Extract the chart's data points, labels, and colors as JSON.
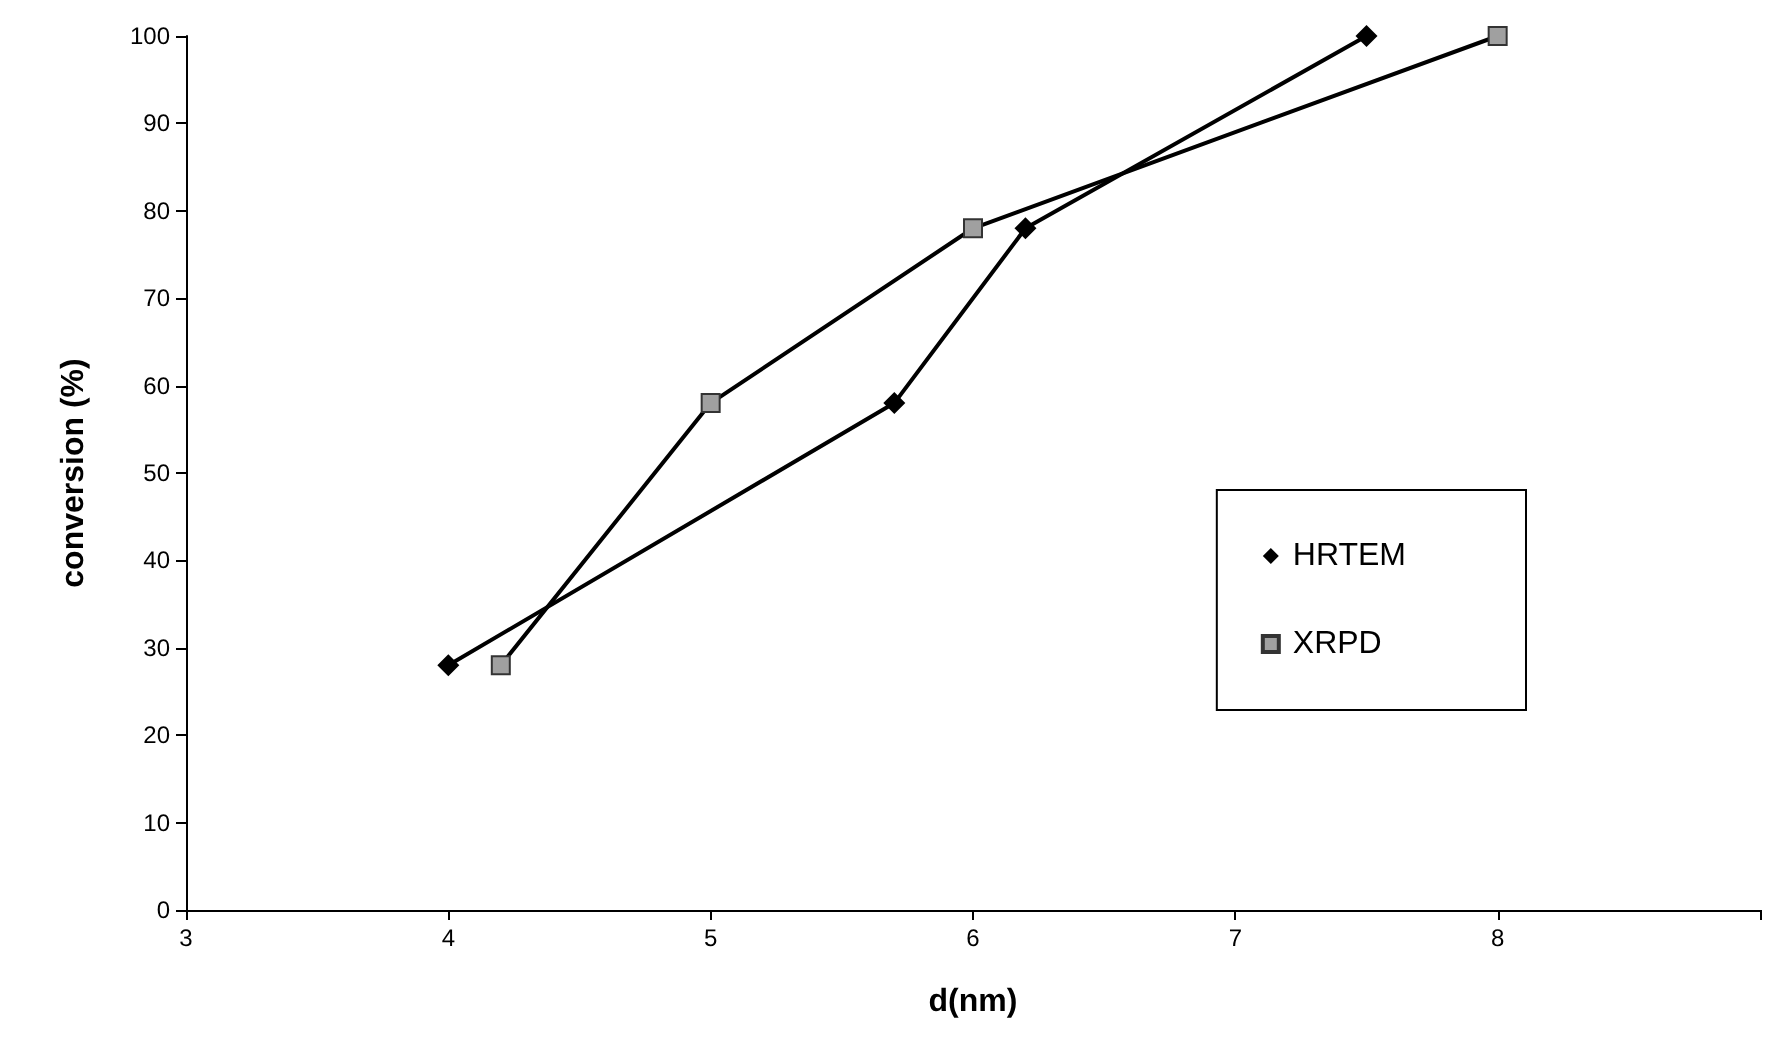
{
  "chart_data": {
    "type": "line",
    "xlabel": "d(nm)",
    "ylabel": "conversion (%)",
    "xlim": [
      3,
      9
    ],
    "xticks": [
      3,
      4,
      5,
      6,
      7,
      8,
      {
        "value": 9,
        "label": null
      }
    ],
    "ylim": [
      0,
      100
    ],
    "yticks": [
      0,
      10,
      20,
      30,
      40,
      50,
      60,
      70,
      80,
      90,
      100
    ],
    "grid": false,
    "legend": "right",
    "line_style": "solid",
    "series": [
      {
        "name": "HRTEM",
        "color": "#000000",
        "marker": "diamond",
        "x": [
          4,
          5.7,
          6.2,
          7.5
        ],
        "values": [
          28,
          58,
          78,
          100
        ]
      },
      {
        "name": "XRPD",
        "color": "#a0a0a0",
        "marker": "square",
        "x": [
          4.2,
          5,
          6,
          8
        ],
        "values": [
          28,
          58,
          78,
          100
        ]
      }
    ]
  }
}
